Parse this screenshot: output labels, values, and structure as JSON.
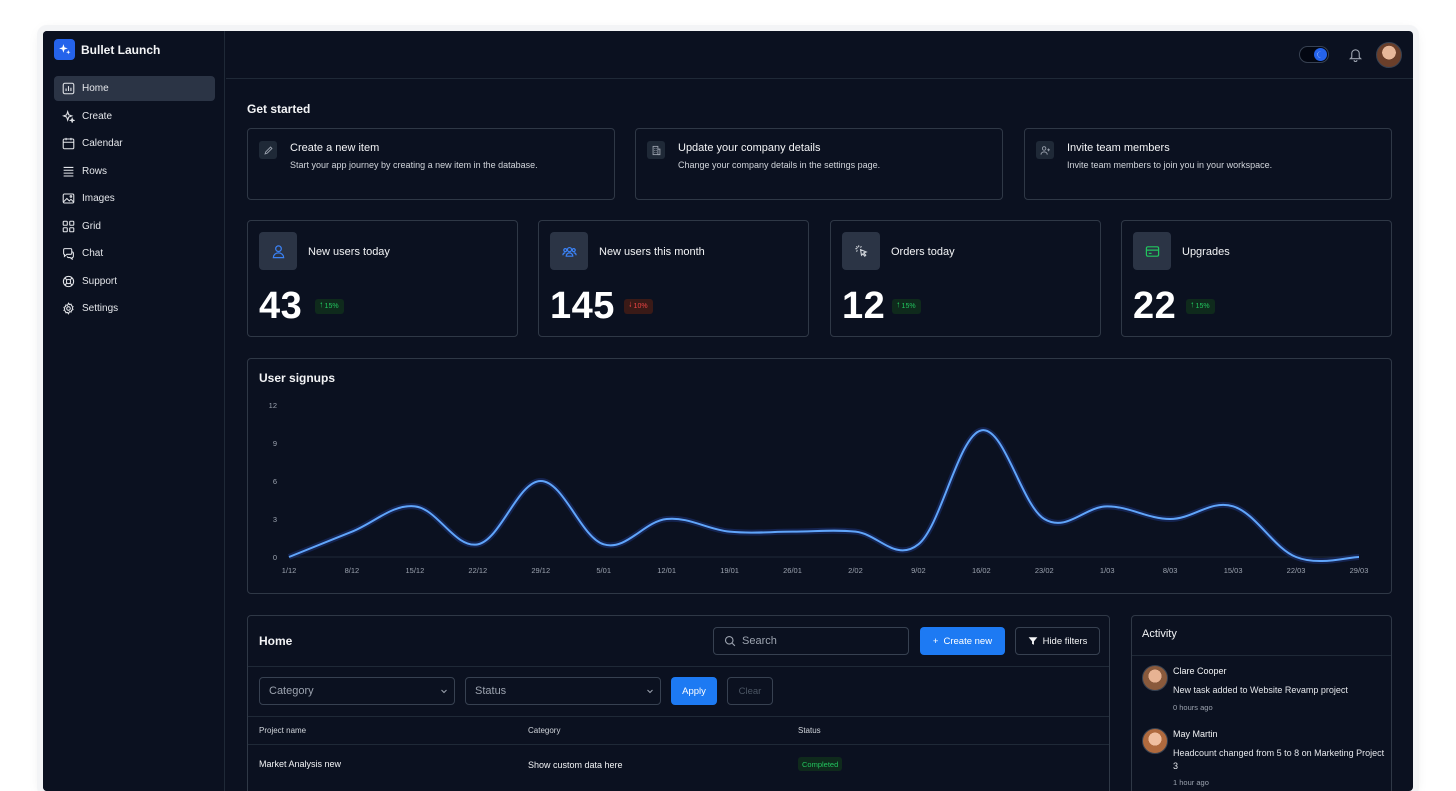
{
  "app": {
    "name": "Bullet Launch"
  },
  "sidebar": {
    "items": [
      {
        "label": "Home",
        "icon": "chart-icon",
        "active": true
      },
      {
        "label": "Create",
        "icon": "sparkle-icon"
      },
      {
        "label": "Calendar",
        "icon": "calendar-icon"
      },
      {
        "label": "Rows",
        "icon": "rows-icon"
      },
      {
        "label": "Images",
        "icon": "image-icon"
      },
      {
        "label": "Grid",
        "icon": "grid-icon"
      },
      {
        "label": "Chat",
        "icon": "chat-icon"
      },
      {
        "label": "Support",
        "icon": "lifebuoy-icon"
      },
      {
        "label": "Settings",
        "icon": "gear-icon"
      }
    ]
  },
  "topbar": {
    "theme_toggle": "dark",
    "icons": [
      "moon-icon",
      "bell-icon",
      "avatar"
    ]
  },
  "get_started": {
    "title": "Get started",
    "cards": [
      {
        "title": "Create a new item",
        "desc": "Start your app journey by creating a new item in the database.",
        "icon": "pencil-icon"
      },
      {
        "title": "Update your company details",
        "desc": "Change your company details in the settings page.",
        "icon": "building-icon"
      },
      {
        "title": "Invite team members",
        "desc": "Invite team members to join you in your workspace.",
        "icon": "user-plus-icon"
      }
    ]
  },
  "stats": [
    {
      "label": "New users today",
      "value": "43",
      "change": "15%",
      "direction": "up",
      "icon": "user-icon"
    },
    {
      "label": "New users this month",
      "value": "145",
      "change": "10%",
      "direction": "down",
      "icon": "users-icon"
    },
    {
      "label": "Orders today",
      "value": "12",
      "change": "15%",
      "direction": "up",
      "icon": "cursor-click-icon"
    },
    {
      "label": "Upgrades",
      "value": "22",
      "change": "15%",
      "direction": "up",
      "icon": "credit-card-icon"
    }
  ],
  "colors": {
    "accent": "#1d7af3",
    "line": "#60a5fa",
    "up": "#22c55e",
    "down": "#ef4444",
    "background": "#0b1120"
  },
  "chart_data": {
    "type": "line",
    "title": "User signups",
    "categories": [
      "1/12",
      "8/12",
      "15/12",
      "22/12",
      "29/12",
      "5/01",
      "12/01",
      "19/01",
      "26/01",
      "2/02",
      "9/02",
      "16/02",
      "23/02",
      "1/03",
      "8/03",
      "15/03",
      "22/03",
      "29/03"
    ],
    "series": [
      {
        "values": [
          0,
          2,
          4,
          1,
          6,
          1,
          3,
          2,
          2,
          2,
          1,
          10,
          3,
          4,
          3,
          4,
          0,
          0
        ]
      }
    ],
    "ylim": [
      0,
      12
    ],
    "yticks": [
      0,
      3,
      6,
      9,
      12
    ],
    "grid": false
  },
  "table": {
    "title": "Home",
    "search_placeholder": "Search",
    "create_label": "Create new",
    "hide_filters_label": "Hide filters",
    "filters": {
      "category_placeholder": "Category",
      "status_placeholder": "Status",
      "apply_label": "Apply",
      "clear_label": "Clear"
    },
    "columns": [
      "Project name",
      "Category",
      "Status"
    ],
    "rows": [
      {
        "name": "Market Analysis new",
        "category": "Show custom data here",
        "status": "Completed"
      }
    ]
  },
  "activity": {
    "title": "Activity",
    "items": [
      {
        "name": "Clare Cooper",
        "text": "New task added to Website Revamp project",
        "time": "0 hours ago"
      },
      {
        "name": "May Martin",
        "text": "Headcount changed from 5 to 8 on Marketing Project 3",
        "time": "1 hour ago"
      }
    ]
  }
}
